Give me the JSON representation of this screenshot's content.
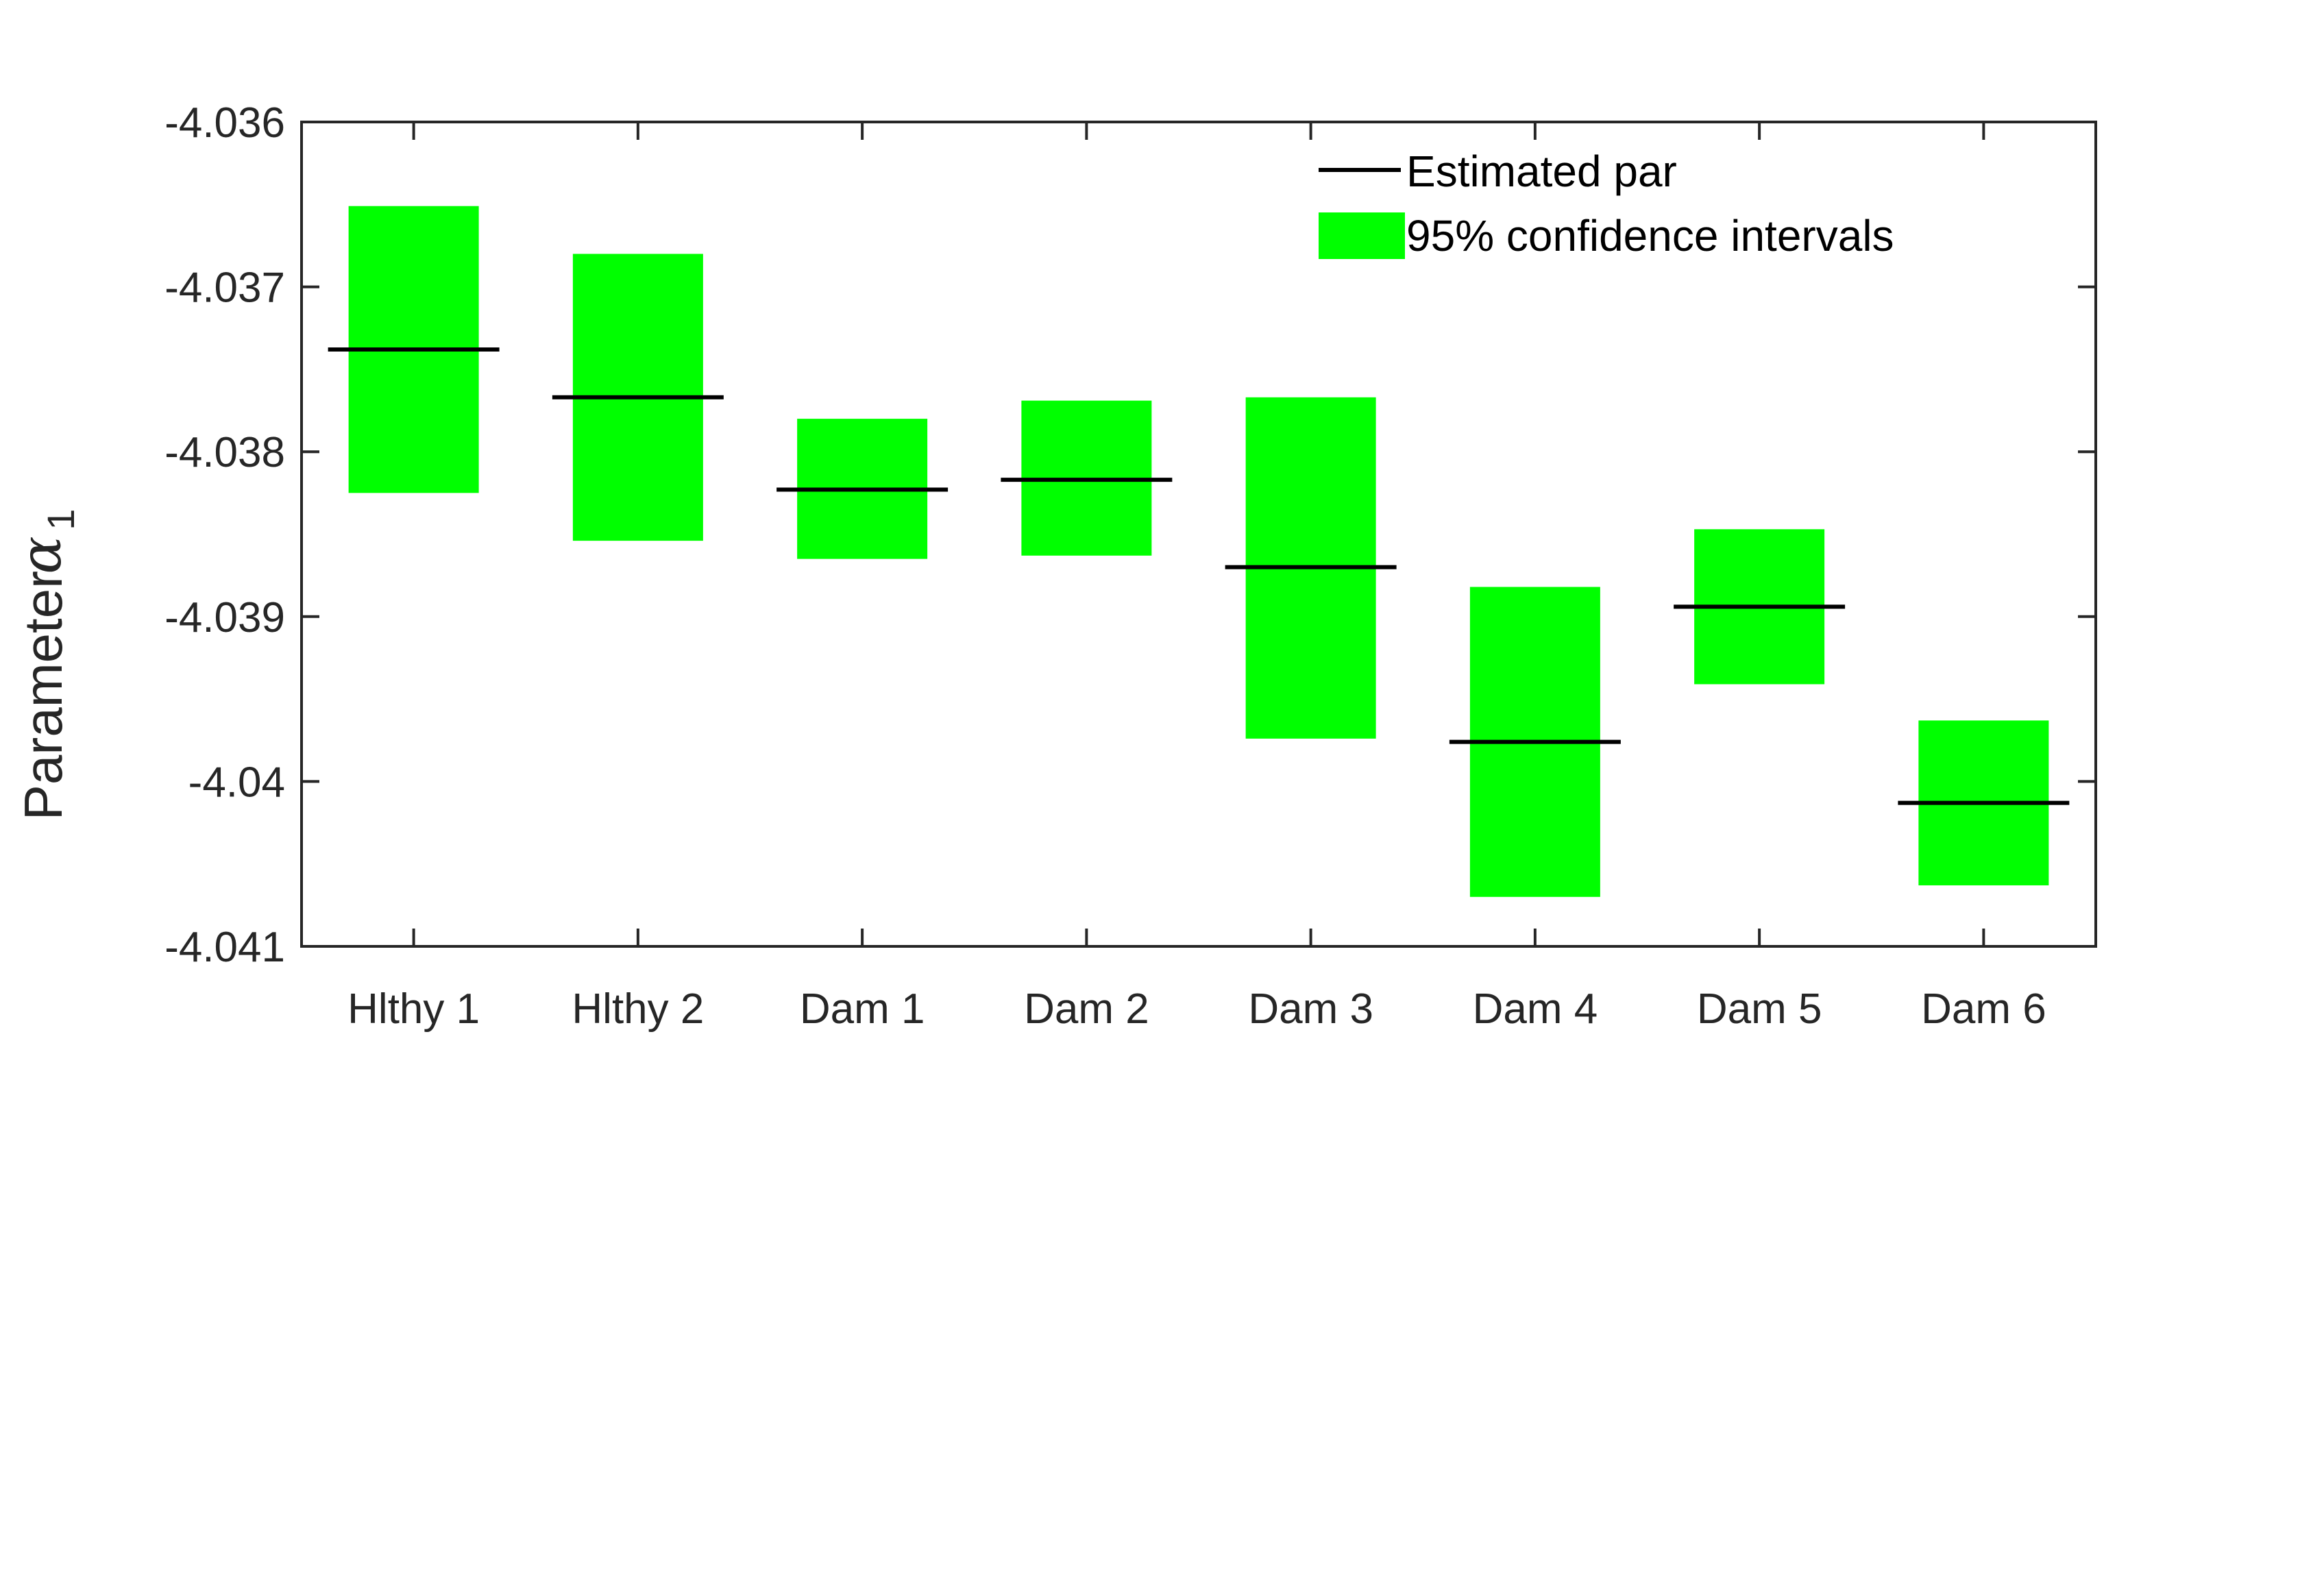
{
  "chart_data": {
    "type": "interval",
    "categories": [
      "Hlthy 1",
      "Hlthy 2",
      "Dam 1",
      "Dam 2",
      "Dam 3",
      "Dam 4",
      "Dam 5",
      "Dam 6"
    ],
    "estimates": [
      -4.03738,
      -4.03767,
      -4.03823,
      -4.03817,
      -4.0387,
      -4.03976,
      -4.03894,
      -4.04013
    ],
    "ci_upper": [
      -4.03651,
      -4.0368,
      -4.0378,
      -4.03769,
      -4.03767,
      -4.03882,
      -4.03847,
      -4.03963
    ],
    "ci_lower": [
      -4.03825,
      -4.03854,
      -4.03865,
      -4.03863,
      -4.03974,
      -4.0407,
      -4.03941,
      -4.04063
    ],
    "ylim": [
      -4.041,
      -4.036
    ],
    "yticks": [
      -4.036,
      -4.037,
      -4.038,
      -4.039,
      -4.04,
      -4.041
    ],
    "ytick_labels": [
      "-4.036",
      "-4.037",
      "-4.038",
      "-4.039",
      "-4.04",
      "-4.041"
    ],
    "ylabel": "Parameter",
    "ylabel_symbol": "α",
    "ylabel_subscript": "1",
    "legend": {
      "position": "top-right",
      "entries": [
        {
          "label": "Estimated par",
          "kind": "line"
        },
        {
          "label": "95% confidence intervals",
          "kind": "box"
        }
      ]
    },
    "colors": {
      "ci_fill": "#00ff00",
      "estimate_line": "#000000",
      "axes": "#262626"
    }
  }
}
